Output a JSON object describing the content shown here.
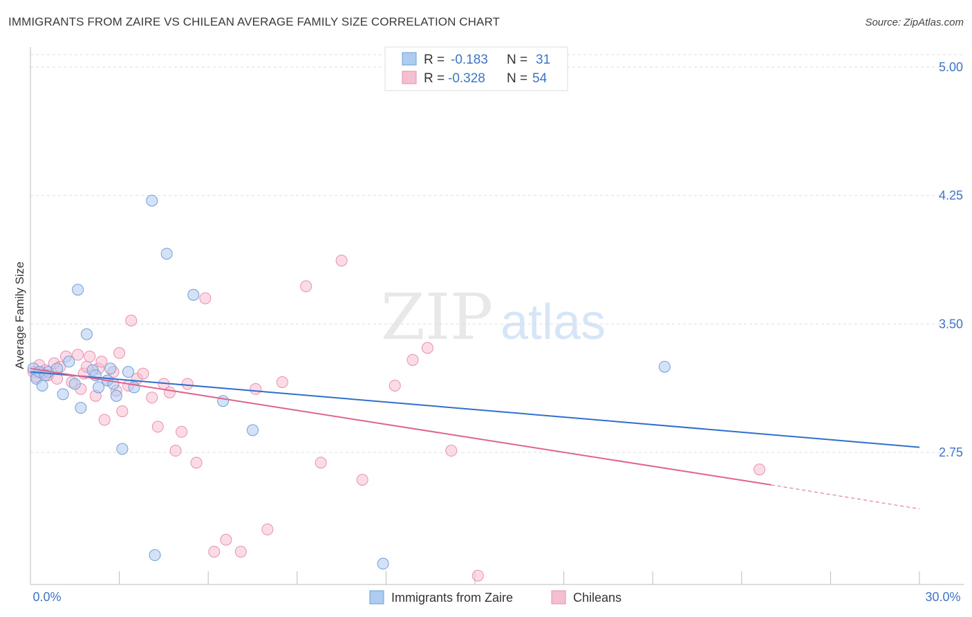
{
  "header": {
    "title": "IMMIGRANTS FROM ZAIRE VS CHILEAN AVERAGE FAMILY SIZE CORRELATION CHART",
    "source": "Source: ZipAtlas.com"
  },
  "watermark": {
    "zip": "ZIP",
    "atlas": "atlas"
  },
  "colors": {
    "blue_fill": "#aecbf0",
    "blue_stroke": "#6f9ed8",
    "blue_line": "#2e6fce",
    "pink_fill": "#f6bed1",
    "pink_stroke": "#e88fae",
    "pink_line": "#e0638f",
    "axis_label": "#3d74c8",
    "grid": "#dddddd"
  },
  "legend": {
    "r_label": "R =",
    "n_label": "N =",
    "entries": [
      {
        "r": "-0.183",
        "n": "31"
      },
      {
        "r": "-0.328",
        "n": "54"
      }
    ]
  },
  "chart_data": {
    "type": "scatter",
    "title": "IMMIGRANTS FROM ZAIRE VS CHILEAN AVERAGE FAMILY SIZE CORRELATION CHART",
    "xlabel": "",
    "ylabel": "Average Family Size",
    "xlim": [
      0,
      30
    ],
    "ylim": [
      2.0,
      5.1
    ],
    "x_tick_labels": [
      "0.0%",
      "30.0%"
    ],
    "y_ticks": [
      2.75,
      3.5,
      4.25,
      5.0
    ],
    "y_tick_labels": [
      "2.75",
      "3.50",
      "4.25",
      "5.00"
    ],
    "grid": true,
    "legend_position": "top-center",
    "series": [
      {
        "name": "Immigrants from Zaire",
        "r": -0.183,
        "n": 31,
        "trend": {
          "x": [
            0,
            30
          ],
          "y": [
            3.22,
            2.78
          ]
        },
        "points": [
          {
            "x": 0.1,
            "y": 3.24
          },
          {
            "x": 0.2,
            "y": 3.18
          },
          {
            "x": 0.3,
            "y": 3.22
          },
          {
            "x": 0.4,
            "y": 3.14
          },
          {
            "x": 0.6,
            "y": 3.22
          },
          {
            "x": 0.9,
            "y": 3.24
          },
          {
            "x": 1.1,
            "y": 3.09
          },
          {
            "x": 1.3,
            "y": 3.28
          },
          {
            "x": 1.5,
            "y": 3.15
          },
          {
            "x": 1.6,
            "y": 3.7
          },
          {
            "x": 1.7,
            "y": 3.01
          },
          {
            "x": 1.9,
            "y": 3.44
          },
          {
            "x": 2.1,
            "y": 3.23
          },
          {
            "x": 2.2,
            "y": 3.2
          },
          {
            "x": 2.3,
            "y": 3.13
          },
          {
            "x": 2.6,
            "y": 3.17
          },
          {
            "x": 2.7,
            "y": 3.24
          },
          {
            "x": 2.8,
            "y": 3.15
          },
          {
            "x": 2.9,
            "y": 3.08
          },
          {
            "x": 3.1,
            "y": 2.77
          },
          {
            "x": 3.3,
            "y": 3.22
          },
          {
            "x": 3.5,
            "y": 3.13
          },
          {
            "x": 4.1,
            "y": 4.22
          },
          {
            "x": 4.2,
            "y": 2.15
          },
          {
            "x": 4.6,
            "y": 3.91
          },
          {
            "x": 5.5,
            "y": 3.67
          },
          {
            "x": 6.5,
            "y": 3.05
          },
          {
            "x": 7.5,
            "y": 2.88
          },
          {
            "x": 11.9,
            "y": 2.1
          },
          {
            "x": 21.4,
            "y": 3.25
          },
          {
            "x": 0.5,
            "y": 3.2
          }
        ]
      },
      {
        "name": "Chileans",
        "r": -0.328,
        "n": 54,
        "trend": {
          "x": [
            0,
            25
          ],
          "y": [
            3.24,
            2.56
          ]
        },
        "trend_dashed": {
          "x": [
            25,
            30
          ],
          "y": [
            2.56,
            2.42
          ]
        },
        "points": [
          {
            "x": 0.1,
            "y": 3.22
          },
          {
            "x": 0.2,
            "y": 3.19
          },
          {
            "x": 0.3,
            "y": 3.26
          },
          {
            "x": 0.4,
            "y": 3.21
          },
          {
            "x": 0.5,
            "y": 3.23
          },
          {
            "x": 0.6,
            "y": 3.2
          },
          {
            "x": 0.8,
            "y": 3.27
          },
          {
            "x": 0.9,
            "y": 3.18
          },
          {
            "x": 1.0,
            "y": 3.25
          },
          {
            "x": 1.2,
            "y": 3.31
          },
          {
            "x": 1.4,
            "y": 3.16
          },
          {
            "x": 1.6,
            "y": 3.32
          },
          {
            "x": 1.7,
            "y": 3.12
          },
          {
            "x": 1.8,
            "y": 3.21
          },
          {
            "x": 1.9,
            "y": 3.25
          },
          {
            "x": 2.0,
            "y": 3.31
          },
          {
            "x": 2.2,
            "y": 3.08
          },
          {
            "x": 2.3,
            "y": 3.24
          },
          {
            "x": 2.4,
            "y": 3.28
          },
          {
            "x": 2.5,
            "y": 2.94
          },
          {
            "x": 2.6,
            "y": 3.17
          },
          {
            "x": 2.8,
            "y": 3.22
          },
          {
            "x": 2.9,
            "y": 3.11
          },
          {
            "x": 3.0,
            "y": 3.33
          },
          {
            "x": 3.1,
            "y": 2.99
          },
          {
            "x": 3.3,
            "y": 3.14
          },
          {
            "x": 3.4,
            "y": 3.52
          },
          {
            "x": 3.6,
            "y": 3.18
          },
          {
            "x": 3.8,
            "y": 3.21
          },
          {
            "x": 4.1,
            "y": 3.07
          },
          {
            "x": 4.3,
            "y": 2.9
          },
          {
            "x": 4.5,
            "y": 3.15
          },
          {
            "x": 4.7,
            "y": 3.1
          },
          {
            "x": 4.9,
            "y": 2.76
          },
          {
            "x": 5.1,
            "y": 2.87
          },
          {
            "x": 5.3,
            "y": 3.15
          },
          {
            "x": 5.6,
            "y": 2.69
          },
          {
            "x": 5.9,
            "y": 3.65
          },
          {
            "x": 6.2,
            "y": 2.17
          },
          {
            "x": 6.6,
            "y": 2.24
          },
          {
            "x": 7.1,
            "y": 2.17
          },
          {
            "x": 7.6,
            "y": 3.12
          },
          {
            "x": 8.0,
            "y": 2.3
          },
          {
            "x": 8.5,
            "y": 3.16
          },
          {
            "x": 9.3,
            "y": 3.72
          },
          {
            "x": 9.8,
            "y": 2.69
          },
          {
            "x": 10.5,
            "y": 3.87
          },
          {
            "x": 11.2,
            "y": 2.59
          },
          {
            "x": 12.3,
            "y": 3.14
          },
          {
            "x": 12.9,
            "y": 3.29
          },
          {
            "x": 13.4,
            "y": 3.36
          },
          {
            "x": 14.2,
            "y": 2.76
          },
          {
            "x": 15.1,
            "y": 2.03
          },
          {
            "x": 24.6,
            "y": 2.65
          }
        ]
      }
    ]
  }
}
